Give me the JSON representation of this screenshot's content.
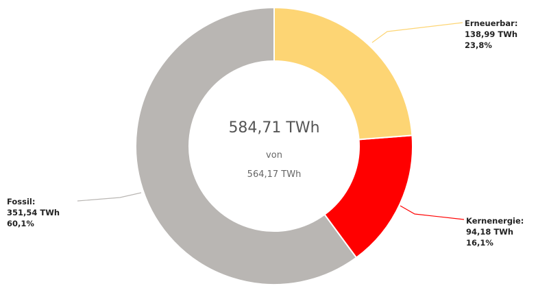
{
  "chart_data": {
    "type": "pie",
    "categories": [
      "Erneuerbar:",
      "Kernenergie:",
      "Fossil:"
    ],
    "values": [
      138.99,
      94.18,
      351.54
    ],
    "value_labels": [
      "138,99 TWh",
      "94,18 TWh",
      "351,54 TWh"
    ],
    "percentages": [
      23.8,
      16.1,
      60.1
    ],
    "percentage_labels": [
      "23,8%",
      "16,1%",
      "60,1%"
    ],
    "colors": [
      "#fdd574",
      "#ff0000",
      "#b9b6b3"
    ],
    "center": {
      "total": "584,71 TWh",
      "of": "von",
      "reference": "564,17 TWh"
    }
  }
}
